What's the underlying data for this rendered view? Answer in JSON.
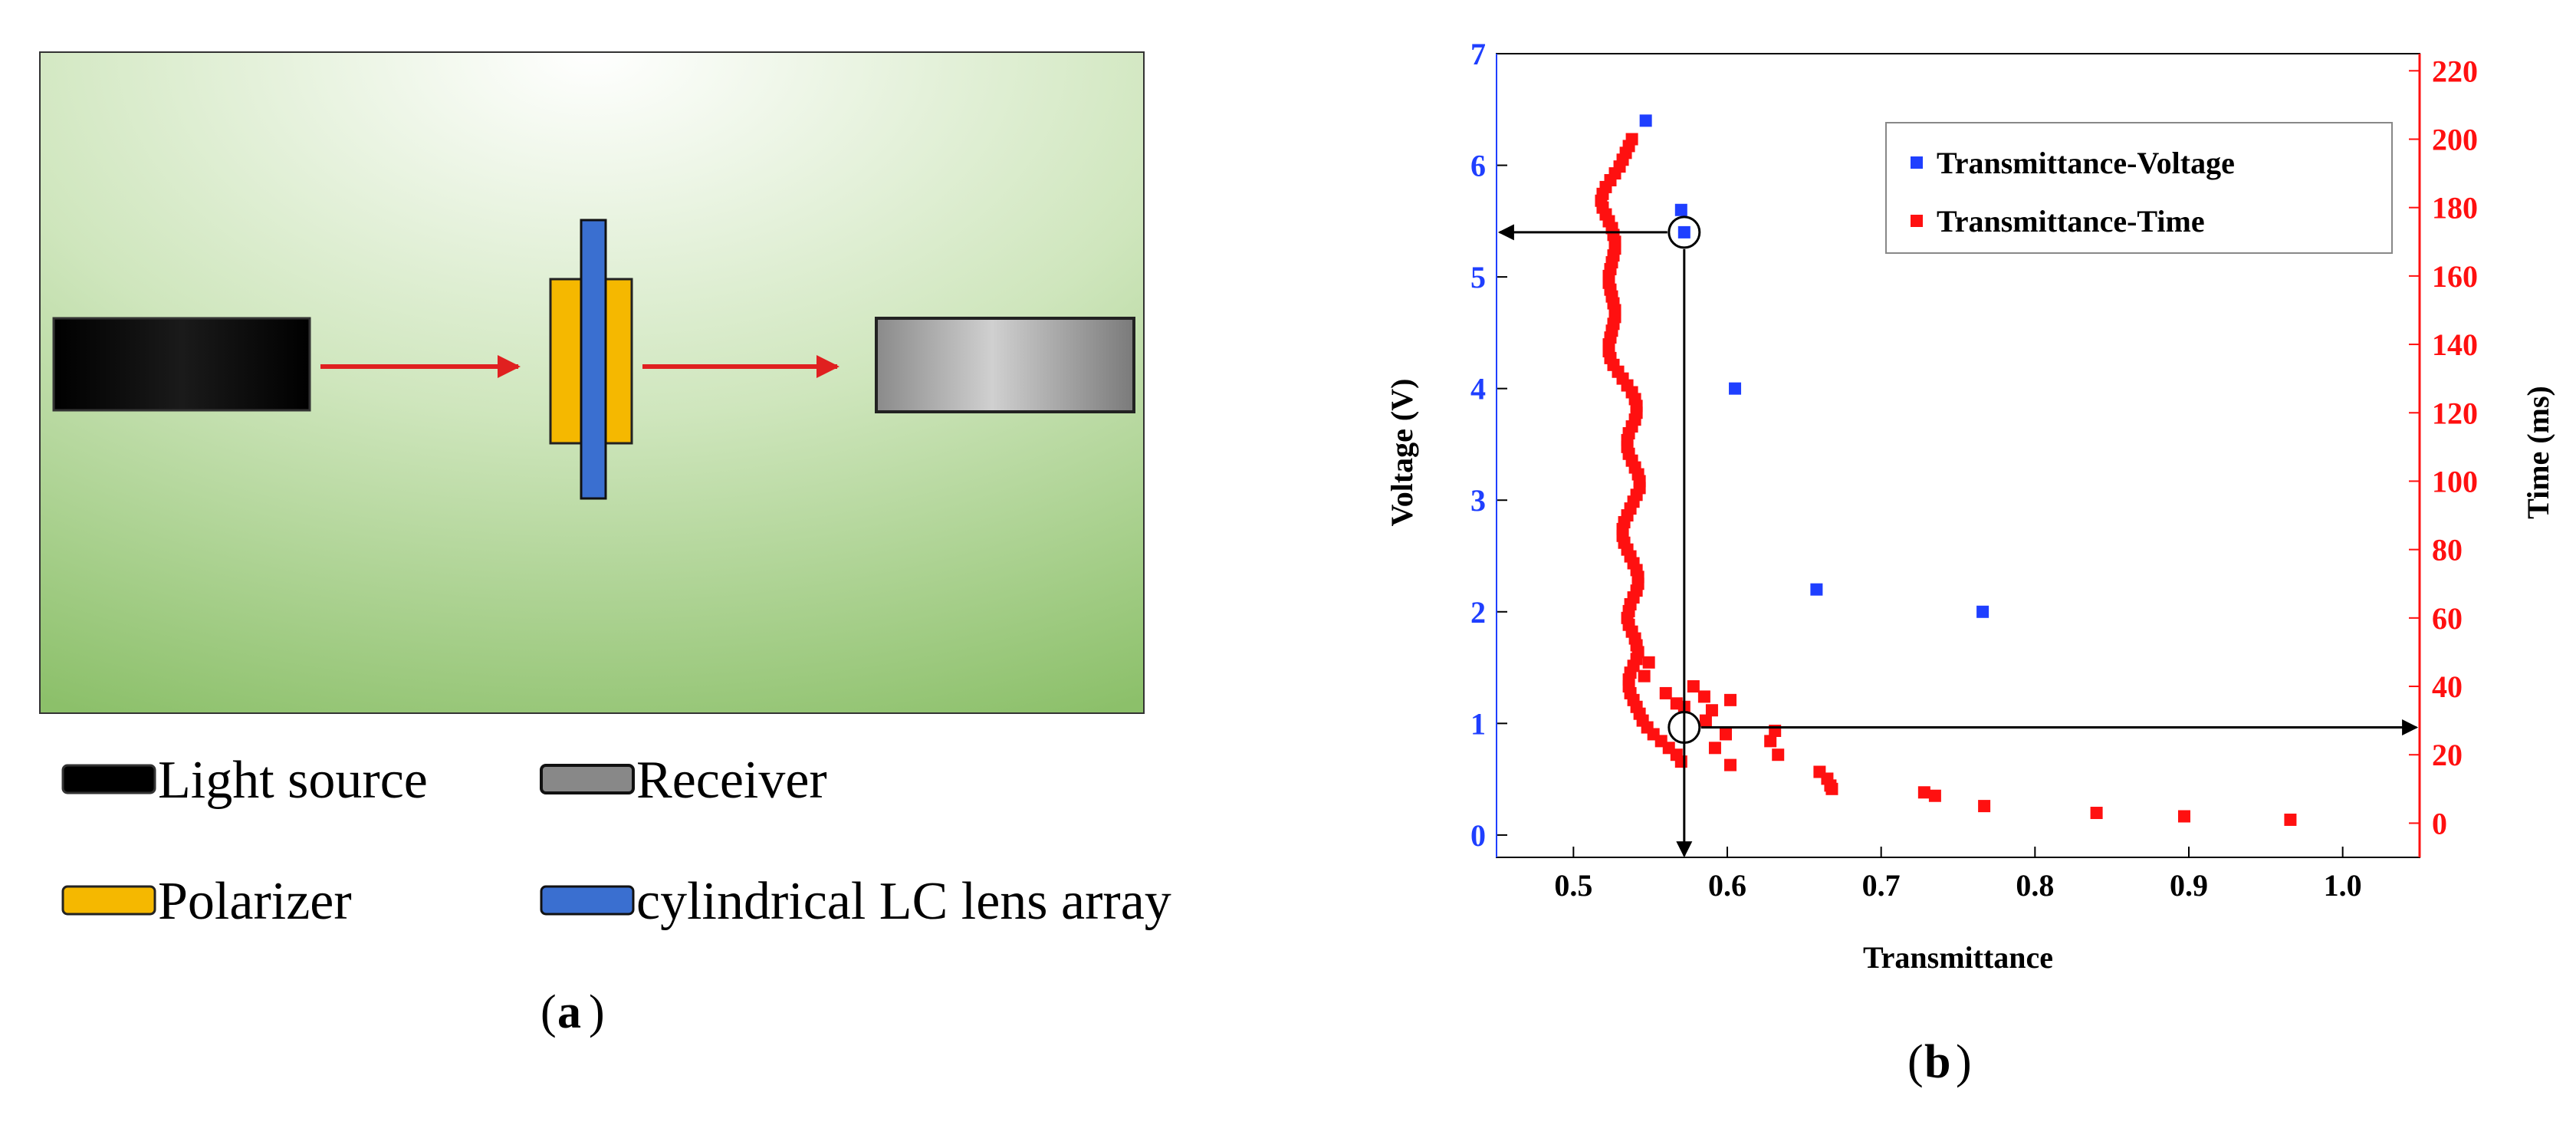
{
  "panel_a": {
    "legend": [
      {
        "key": "light_source",
        "label": "Light source",
        "color": "#000000"
      },
      {
        "key": "receiver",
        "label": "Receiver",
        "color": "#888888"
      },
      {
        "key": "polarizer",
        "label": "Polarizer",
        "color": "#F5B800"
      },
      {
        "key": "lens_array",
        "label": "cylindrical LC lens array",
        "color": "#3A6FD0"
      }
    ],
    "caption_letter": "a",
    "colors": {
      "background": "#8CC06A",
      "arrow": "#E02020"
    }
  },
  "panel_b": {
    "caption_letter": "b"
  },
  "chart_data": {
    "type": "scatter",
    "xlabel": "Transmittance",
    "ylabel": "Voltage (V)",
    "y2label": "Time (ms)",
    "xlim": [
      0.45,
      1.05
    ],
    "ylim": [
      -0.2,
      7
    ],
    "y2lim": [
      -10,
      225
    ],
    "xticks": [
      "0.5",
      "0.6",
      "0.7",
      "0.8",
      "0.9",
      "1.0"
    ],
    "yticks": [
      "0",
      "1",
      "2",
      "3",
      "4",
      "5",
      "6",
      "7"
    ],
    "y2ticks": [
      "0",
      "20",
      "40",
      "60",
      "80",
      "100",
      "120",
      "140",
      "160",
      "180",
      "200",
      "220"
    ],
    "legend_position": "top-right",
    "series": [
      {
        "name": "Transmittance-Voltage",
        "axis": "left",
        "color": "#1F3FFF",
        "x": [
          0.547,
          0.57,
          0.572,
          0.605,
          0.658,
          0.766
        ],
        "y": [
          6.4,
          5.6,
          5.4,
          4.0,
          2.2,
          2.0
        ]
      },
      {
        "name": "Transmittance-Time",
        "axis": "right",
        "color": "#FF1010",
        "x": [
          0.538,
          0.536,
          0.534,
          0.532,
          0.53,
          0.527,
          0.524,
          0.521,
          0.519,
          0.518,
          0.519,
          0.521,
          0.523,
          0.525,
          0.526,
          0.527,
          0.527,
          0.526,
          0.525,
          0.524,
          0.523,
          0.523,
          0.524,
          0.525,
          0.526,
          0.527,
          0.527,
          0.526,
          0.525,
          0.524,
          0.523,
          0.523,
          0.524,
          0.526,
          0.529,
          0.532,
          0.535,
          0.538,
          0.54,
          0.541,
          0.541,
          0.54,
          0.538,
          0.536,
          0.535,
          0.535,
          0.536,
          0.538,
          0.54,
          0.542,
          0.543,
          0.543,
          0.541,
          0.539,
          0.537,
          0.535,
          0.533,
          0.532,
          0.532,
          0.533,
          0.535,
          0.537,
          0.539,
          0.541,
          0.542,
          0.542,
          0.541,
          0.539,
          0.537,
          0.536,
          0.535,
          0.536,
          0.538,
          0.54,
          0.541,
          0.542,
          0.541,
          0.539,
          0.537,
          0.536,
          0.536,
          0.537,
          0.539,
          0.541,
          0.543,
          0.545,
          0.548,
          0.552,
          0.557,
          0.562,
          0.567,
          0.57,
          0.549,
          0.546,
          0.56,
          0.567,
          0.572,
          0.578,
          0.585,
          0.59,
          0.602,
          0.586,
          0.599,
          0.592,
          0.631,
          0.628,
          0.633,
          0.602,
          0.66,
          0.665,
          0.667,
          0.668,
          0.728,
          0.735,
          0.767,
          0.84,
          0.897,
          0.966
        ],
        "y": [
          200,
          198,
          196,
          194,
          192,
          190,
          188,
          186,
          184,
          182,
          180,
          178,
          176,
          174,
          172,
          170,
          168,
          166,
          164,
          162,
          160,
          158,
          156,
          154,
          152,
          150,
          148,
          146,
          144,
          142,
          140,
          138,
          136,
          134,
          132,
          130,
          128,
          126,
          124,
          122,
          120,
          118,
          116,
          114,
          112,
          110,
          108,
          106,
          104,
          102,
          100,
          98,
          96,
          94,
          92,
          90,
          88,
          86,
          84,
          82,
          80,
          78,
          76,
          74,
          72,
          70,
          68,
          66,
          64,
          62,
          60,
          58,
          56,
          54,
          52,
          50,
          48,
          46,
          44,
          42,
          40,
          38,
          36,
          34,
          32,
          30,
          28,
          26,
          24,
          22,
          20,
          18,
          47,
          43,
          38,
          35,
          34,
          40,
          37,
          33,
          36,
          30,
          26,
          22,
          27,
          24,
          20,
          17,
          15,
          13,
          11,
          10,
          9,
          8,
          5,
          3,
          2,
          1
        ]
      }
    ],
    "annotations": [
      {
        "type": "circle",
        "x": 0.572,
        "axis": "left",
        "y": 5.4
      },
      {
        "type": "circle",
        "x": 0.572,
        "axis": "right",
        "y": 28
      }
    ]
  }
}
